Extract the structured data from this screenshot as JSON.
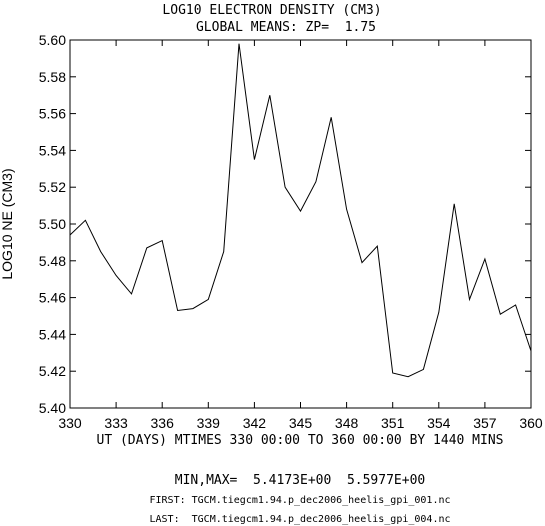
{
  "chart_data": {
    "type": "line",
    "title": "LOG10 ELECTRON DENSITY (CM3)",
    "subtitle": "GLOBAL MEANS: ZP=  1.75",
    "xlabel": "UT (DAYS) MTIMES 330 00:00 TO 360 00:00 BY 1440 MINS",
    "ylabel": "LOG10 NE (CM3)",
    "xlim": [
      330,
      360
    ],
    "ylim": [
      5.4,
      5.6
    ],
    "xticks": [
      "330",
      "333",
      "336",
      "339",
      "342",
      "345",
      "348",
      "351",
      "354",
      "357",
      "360"
    ],
    "yticks": [
      "5.40",
      "5.42",
      "5.44",
      "5.46",
      "5.48",
      "5.50",
      "5.52",
      "5.54",
      "5.56",
      "5.58",
      "5.60"
    ],
    "x": [
      330,
      331,
      332,
      333,
      334,
      335,
      336,
      337,
      338,
      339,
      340,
      341,
      342,
      343,
      344,
      345,
      346,
      347,
      348,
      349,
      350,
      351,
      352,
      353,
      354,
      355,
      356,
      357,
      358,
      359,
      360
    ],
    "y": [
      5.494,
      5.502,
      5.485,
      5.472,
      5.462,
      5.487,
      5.491,
      5.453,
      5.454,
      5.459,
      5.485,
      5.598,
      5.535,
      5.57,
      5.52,
      5.507,
      5.523,
      5.558,
      5.508,
      5.479,
      5.488,
      5.419,
      5.417,
      5.421,
      5.452,
      5.511,
      5.459,
      5.481,
      5.451,
      5.456,
      5.431
    ],
    "grid": false
  },
  "footer": {
    "minmax": "MIN,MAX=  5.4173E+00  5.5977E+00",
    "first": "FIRST: TGCM.tiegcm1.94.p_dec2006_heelis_gpi_001.nc",
    "last": "LAST:  TGCM.tiegcm1.94.p_dec2006_heelis_gpi_004.nc"
  }
}
